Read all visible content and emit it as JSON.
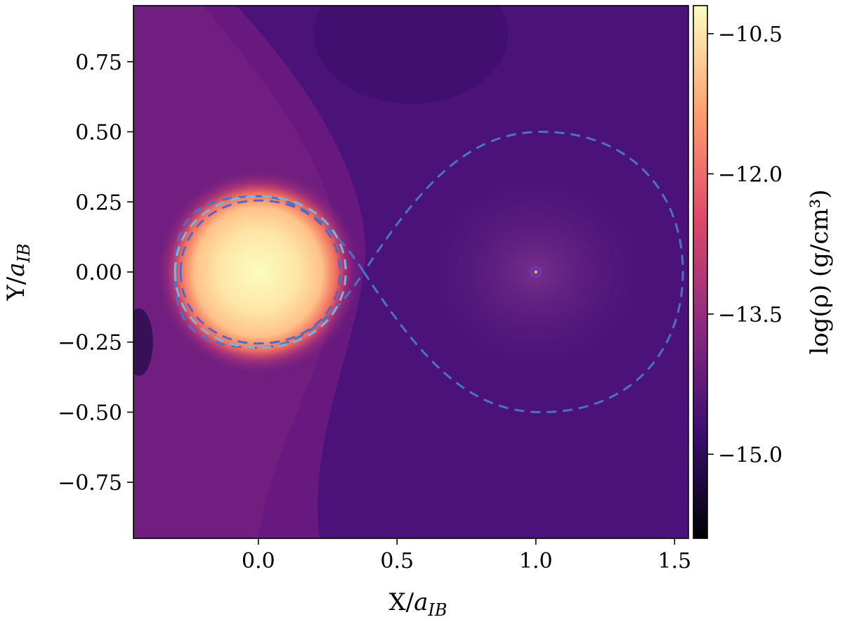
{
  "chart_data": {
    "type": "heatmap",
    "xlabel": "X/",
    "xlabel_sub": "IB",
    "ylabel": "Y/",
    "ylabel_sub": "IB",
    "xlim": [
      -0.45,
      1.55
    ],
    "ylim": [
      -0.95,
      0.95
    ],
    "xticks": [
      0.0,
      0.5,
      1.0,
      1.5
    ],
    "xtick_labels": [
      "0.0",
      "0.5",
      "1.0",
      "1.5"
    ],
    "yticks": [
      0.75,
      0.5,
      0.25,
      0.0,
      -0.25,
      -0.5,
      -0.75
    ],
    "ytick_labels": [
      "0.75",
      "0.50",
      "0.25",
      "0.00",
      "−0.25",
      "−0.50",
      "−0.75"
    ],
    "colorbar": {
      "label": "log(ρ) (g/cm³)",
      "range": [
        -15.9,
        -10.2
      ],
      "ticks": [
        -10.5,
        -12.0,
        -13.5,
        -15.0
      ],
      "tick_labels": [
        "−10.5",
        "−12.0",
        "−13.5",
        "−15.0"
      ],
      "colormap": "magma",
      "colors": [
        "#000004",
        "#3b0f70",
        "#8c2981",
        "#de4968",
        "#fe9f6d",
        "#fcfdbf"
      ]
    },
    "features": {
      "star": {
        "x": 0.0,
        "y": 0.0,
        "radius": 0.23,
        "peak_log_rho": -10.3
      },
      "companion": {
        "x": 1.0,
        "y": 0.0
      },
      "background_log_rho": -14.2
    },
    "roche_lobe": {
      "l1_x": 0.38,
      "primary_extent": 0.27,
      "secondary_extent": 0.5,
      "color": "#4a72c8"
    },
    "inner_contours": [
      {
        "rx": 0.3,
        "ry": 0.27,
        "color": "#7fb3d9"
      },
      {
        "rx": 0.28,
        "ry": 0.255,
        "color": "#5566c8"
      }
    ]
  }
}
